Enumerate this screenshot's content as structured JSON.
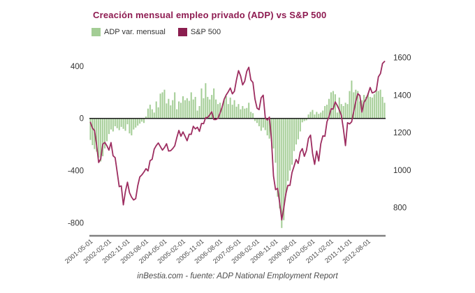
{
  "header": {
    "title": "Creación mensual empleo privado (ADP) vs S&P 500"
  },
  "footer": {
    "text": "inBestia.com - fuente: ADP National Employment Report"
  },
  "colors": {
    "title": "#8E1B51",
    "bar": "#A3CD95",
    "line": "#9D2D60",
    "legend_sp_swatch": "#8B1E4F",
    "axis_text": "#333333",
    "x_tick_text": "#4d4d4d",
    "zero_line": "#1a1a1a",
    "bottom_axis_line": "#808080"
  },
  "chart_data": {
    "type": "bar",
    "title": "Creación mensual empleo privado (ADP) vs S&P 500",
    "xlabel": "",
    "ylabel": "",
    "grid": false,
    "legend_position": "top-left",
    "x": [
      "2001-05-01",
      "2001-06-01",
      "2001-07-01",
      "2001-08-01",
      "2001-09-01",
      "2001-10-01",
      "2001-11-01",
      "2001-12-01",
      "2002-01-01",
      "2002-02-01",
      "2002-03-01",
      "2002-04-01",
      "2002-05-01",
      "2002-06-01",
      "2002-07-01",
      "2002-08-01",
      "2002-09-01",
      "2002-10-01",
      "2002-11-01",
      "2002-12-01",
      "2003-01-01",
      "2003-02-01",
      "2003-03-01",
      "2003-04-01",
      "2003-05-01",
      "2003-06-01",
      "2003-07-01",
      "2003-08-01",
      "2003-09-01",
      "2003-10-01",
      "2003-11-01",
      "2003-12-01",
      "2004-01-01",
      "2004-02-01",
      "2004-03-01",
      "2004-04-01",
      "2004-05-01",
      "2004-06-01",
      "2004-07-01",
      "2004-08-01",
      "2004-09-01",
      "2004-10-01",
      "2004-11-01",
      "2004-12-01",
      "2005-01-01",
      "2005-02-01",
      "2005-03-01",
      "2005-04-01",
      "2005-05-01",
      "2005-06-01",
      "2005-07-01",
      "2005-08-01",
      "2005-09-01",
      "2005-10-01",
      "2005-11-01",
      "2005-12-01",
      "2006-01-01",
      "2006-02-01",
      "2006-03-01",
      "2006-04-01",
      "2006-05-01",
      "2006-06-01",
      "2006-07-01",
      "2006-08-01",
      "2006-09-01",
      "2006-10-01",
      "2006-11-01",
      "2006-12-01",
      "2007-01-01",
      "2007-02-01",
      "2007-03-01",
      "2007-04-01",
      "2007-05-01",
      "2007-06-01",
      "2007-07-01",
      "2007-08-01",
      "2007-09-01",
      "2007-10-01",
      "2007-11-01",
      "2007-12-01",
      "2008-01-01",
      "2008-02-01",
      "2008-03-01",
      "2008-04-01",
      "2008-05-01",
      "2008-06-01",
      "2008-07-01",
      "2008-08-01",
      "2008-09-01",
      "2008-10-01",
      "2008-11-01",
      "2008-12-01",
      "2009-01-01",
      "2009-02-01",
      "2009-03-01",
      "2009-04-01",
      "2009-05-01",
      "2009-06-01",
      "2009-07-01",
      "2009-08-01",
      "2009-09-01",
      "2009-10-01",
      "2009-11-01",
      "2009-12-01",
      "2010-01-01",
      "2010-02-01",
      "2010-03-01",
      "2010-04-01",
      "2010-05-01",
      "2010-06-01",
      "2010-07-01",
      "2010-08-01",
      "2010-09-01",
      "2010-10-01",
      "2010-11-01",
      "2010-12-01",
      "2011-01-01",
      "2011-02-01",
      "2011-03-01",
      "2011-04-01",
      "2011-05-01",
      "2011-06-01",
      "2011-07-01",
      "2011-08-01",
      "2011-09-01",
      "2011-10-01",
      "2011-11-01",
      "2011-12-01",
      "2012-01-01",
      "2012-02-01",
      "2012-03-01",
      "2012-04-01",
      "2012-05-01",
      "2012-06-01",
      "2012-07-01",
      "2012-08-01",
      "2012-09-01",
      "2012-10-01",
      "2012-11-01",
      "2012-12-01",
      "2013-01-01",
      "2013-02-01",
      "2013-03-01",
      "2013-04-01"
    ],
    "series": [
      {
        "name": "ADP var. mensual",
        "kind": "bar",
        "axis": "left",
        "color": "#A3CD95",
        "values": [
          -165,
          -205,
          -235,
          -255,
          -300,
          -330,
          -290,
          -230,
          -175,
          -120,
          -85,
          -100,
          -60,
          -75,
          -90,
          -65,
          -80,
          -95,
          -45,
          -115,
          -130,
          -85,
          -70,
          -55,
          -40,
          -25,
          -35,
          15,
          75,
          105,
          70,
          45,
          130,
          85,
          190,
          200,
          220,
          115,
          150,
          100,
          140,
          200,
          70,
          130,
          120,
          170,
          140,
          155,
          135,
          200,
          145,
          165,
          60,
          95,
          230,
          155,
          270,
          165,
          145,
          180,
          230,
          145,
          110,
          120,
          85,
          140,
          170,
          110,
          160,
          105,
          140,
          90,
          110,
          70,
          95,
          75,
          80,
          120,
          50,
          40,
          -20,
          -35,
          -60,
          -95,
          -70,
          -90,
          -130,
          -155,
          -175,
          -230,
          -340,
          -600,
          -690,
          -840,
          -780,
          -590,
          -480,
          -400,
          -355,
          -250,
          -200,
          -160,
          -100,
          -30,
          -20,
          -15,
          30,
          50,
          65,
          30,
          50,
          35,
          45,
          60,
          95,
          105,
          150,
          200,
          210,
          185,
          45,
          160,
          110,
          95,
          120,
          110,
          210,
          290,
          200,
          220,
          210,
          130,
          140,
          180,
          165,
          195,
          165,
          160,
          185,
          220,
          210,
          220,
          165,
          120
        ]
      },
      {
        "name": "S&P 500",
        "kind": "line",
        "axis": "right",
        "color": "#9D2D60",
        "values": [
          1255,
          1224,
          1211,
          1134,
          1041,
          1060,
          1139,
          1148,
          1130,
          1107,
          1147,
          1077,
          1067,
          990,
          912,
          916,
          815,
          886,
          936,
          880,
          856,
          841,
          848,
          917,
          964,
          975,
          990,
          1008,
          996,
          1051,
          1058,
          1112,
          1131,
          1145,
          1126,
          1107,
          1121,
          1141,
          1102,
          1104,
          1115,
          1130,
          1174,
          1212,
          1181,
          1204,
          1181,
          1157,
          1192,
          1191,
          1234,
          1220,
          1229,
          1207,
          1249,
          1248,
          1280,
          1281,
          1295,
          1311,
          1270,
          1270,
          1277,
          1304,
          1336,
          1378,
          1401,
          1418,
          1438,
          1407,
          1421,
          1482,
          1531,
          1503,
          1455,
          1474,
          1527,
          1549,
          1481,
          1468,
          1379,
          1331,
          1323,
          1386,
          1400,
          1280,
          1267,
          1283,
          1166,
          969,
          896,
          903,
          826,
          735,
          798,
          873,
          919,
          919,
          987,
          1021,
          1057,
          1036,
          1096,
          1115,
          1074,
          1104,
          1169,
          1187,
          1089,
          1031,
          1102,
          1049,
          1141,
          1183,
          1181,
          1258,
          1286,
          1327,
          1326,
          1364,
          1345,
          1321,
          1292,
          1219,
          1131,
          1253,
          1247,
          1258,
          1312,
          1366,
          1408,
          1398,
          1310,
          1362,
          1379,
          1407,
          1441,
          1412,
          1416,
          1426,
          1498,
          1515,
          1569,
          1580
        ]
      }
    ],
    "left_axis": {
      "ticks": [
        400,
        0,
        -400,
        -800
      ],
      "ylim": [
        -900,
        480
      ]
    },
    "right_axis": {
      "ticks": [
        1600,
        1400,
        1200,
        1000,
        800
      ],
      "ylim": [
        650,
        1610
      ]
    },
    "x_ticks": {
      "every": 9,
      "labels": [
        "2001-05-01",
        "2002-02-01",
        "2002-11-01",
        "2003-08-01",
        "2004-05-01",
        "2005-02-01",
        "2005-11-01",
        "2006-08-01",
        "2007-05-01",
        "2008-02-01",
        "2008-11-01",
        "2009-08-01",
        "2010-05-01",
        "2011-02-01",
        "2011-11-01",
        "2012-08-01"
      ]
    }
  }
}
